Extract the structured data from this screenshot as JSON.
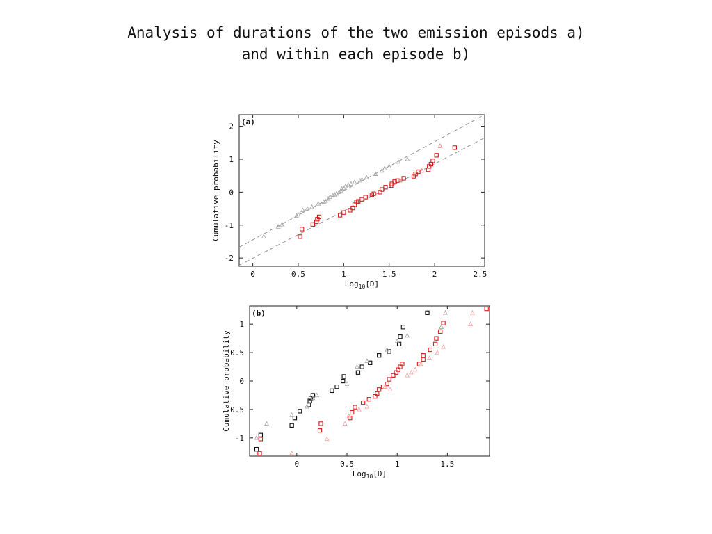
{
  "slide": {
    "title_line1": "Analysis of durations of the two emission episods a)",
    "title_line2": "and within each episode b)"
  },
  "chart_data": [
    {
      "type": "scatter",
      "panel_label": "(a)",
      "xlabel_main": "Log",
      "xlabel_sub": "10",
      "xlabel_rest": "[D]",
      "ylabel": "Cumulative probability",
      "xlim": [
        -0.15,
        2.55
      ],
      "ylim": [
        -2.25,
        2.35
      ],
      "xticks": [
        0,
        0.5,
        1,
        1.5,
        2,
        2.5
      ],
      "xtick_labels": [
        "0",
        "0.5",
        "1",
        "1.5",
        "2",
        "2.5"
      ],
      "yticks": [
        -2,
        -1,
        0,
        1,
        2
      ],
      "ytick_labels": [
        "-2",
        "-1",
        "0",
        "1",
        "2"
      ],
      "grid": false,
      "reference_lines": [
        {
          "color": "#999999",
          "x": [
            -0.15,
            2.55
          ],
          "y": [
            -1.67,
            2.35
          ]
        },
        {
          "color": "#999999",
          "x": [
            -0.15,
            2.55
          ],
          "y": [
            -2.22,
            1.65
          ]
        }
      ],
      "series": [
        {
          "marker": "triangle",
          "color": "#aaaaaa",
          "x": [
            0.12,
            0.28,
            0.32,
            0.48,
            0.5,
            0.55,
            0.6,
            0.65,
            0.72,
            0.78,
            0.8,
            0.83,
            0.85,
            0.88,
            0.9,
            0.92,
            0.95,
            0.97,
            0.98,
            1.0,
            1.02,
            1.05,
            1.08,
            1.12,
            1.18,
            1.2,
            1.25,
            1.35,
            1.42,
            1.45,
            1.5,
            1.6,
            1.7
          ],
          "y": [
            -1.35,
            -1.05,
            -0.98,
            -0.72,
            -0.68,
            -0.55,
            -0.5,
            -0.45,
            -0.35,
            -0.3,
            -0.28,
            -0.2,
            -0.15,
            -0.1,
            -0.08,
            -0.05,
            0.0,
            0.05,
            0.1,
            0.12,
            0.18,
            0.22,
            0.25,
            0.3,
            0.35,
            0.38,
            0.45,
            0.55,
            0.65,
            0.72,
            0.78,
            0.92,
            1.0
          ]
        },
        {
          "marker": "square",
          "color": "#d42020",
          "x": [
            0.52,
            0.54,
            0.66,
            0.7,
            0.71,
            0.73,
            0.96,
            1.0,
            1.07,
            1.1,
            1.12,
            1.14,
            1.16,
            1.2,
            1.24,
            1.31,
            1.33,
            1.4,
            1.42,
            1.46,
            1.52,
            1.53,
            1.56,
            1.59,
            1.66,
            1.77,
            1.79,
            1.82,
            1.93,
            1.94,
            1.96,
            1.98,
            2.02,
            2.22
          ],
          "y": [
            -1.35,
            -1.12,
            -0.98,
            -0.9,
            -0.82,
            -0.75,
            -0.7,
            -0.62,
            -0.55,
            -0.48,
            -0.38,
            -0.3,
            -0.28,
            -0.22,
            -0.15,
            -0.08,
            -0.05,
            0.0,
            0.08,
            0.15,
            0.2,
            0.25,
            0.32,
            0.35,
            0.42,
            0.48,
            0.55,
            0.62,
            0.68,
            0.78,
            0.85,
            0.95,
            1.12,
            1.35
          ]
        },
        {
          "marker": "triangle",
          "color": "#f08080",
          "x": [
            1.62,
            1.86,
            2.06
          ],
          "y": [
            0.35,
            0.65,
            1.4
          ]
        }
      ]
    },
    {
      "type": "scatter",
      "panel_label": "(b)",
      "xlabel_main": "Log",
      "xlabel_sub": "10",
      "xlabel_rest": "[D]",
      "ylabel": "Cumulative probability",
      "xlim": [
        -0.47,
        1.92
      ],
      "ylim": [
        -1.32,
        1.32
      ],
      "xticks": [
        0,
        0.5,
        1,
        1.5
      ],
      "xtick_labels": [
        "0",
        "0.5",
        "1",
        "1.5"
      ],
      "yticks": [
        -1,
        -0.5,
        0,
        0.5,
        1
      ],
      "ytick_labels": [
        "-1",
        "-0.5",
        "0",
        "0.5",
        "1"
      ],
      "grid": false,
      "series": [
        {
          "marker": "square",
          "color": "#111111",
          "x": [
            -0.4,
            -0.36,
            -0.05,
            -0.02,
            0.03,
            0.12,
            0.13,
            0.14,
            0.16,
            0.35,
            0.4,
            0.46,
            0.47,
            0.61,
            0.65,
            0.73,
            0.82,
            0.92,
            1.02,
            1.03,
            1.06,
            1.3
          ],
          "y": [
            -1.2,
            -0.95,
            -0.78,
            -0.65,
            -0.53,
            -0.42,
            -0.35,
            -0.3,
            -0.25,
            -0.17,
            -0.1,
            0.0,
            0.08,
            0.15,
            0.25,
            0.32,
            0.45,
            0.52,
            0.65,
            0.78,
            0.95,
            1.2
          ]
        },
        {
          "marker": "triangle",
          "color": "#aaaaaa",
          "x": [
            -0.4,
            -0.3,
            -0.05,
            0.1,
            0.16,
            0.2,
            0.5,
            0.6,
            0.7,
            0.9,
            1.0,
            1.1,
            1.44,
            1.48
          ],
          "y": [
            -1.0,
            -0.75,
            -0.6,
            -0.45,
            -0.3,
            -0.25,
            -0.05,
            0.25,
            0.35,
            0.55,
            0.7,
            0.8,
            0.95,
            1.2
          ]
        },
        {
          "marker": "square",
          "color": "#d42020",
          "x": [
            -0.37,
            -0.36,
            0.23,
            0.24,
            0.53,
            0.55,
            0.58,
            0.66,
            0.72,
            0.78,
            0.8,
            0.82,
            0.86,
            0.9,
            0.92,
            0.96,
            0.99,
            1.01,
            1.03,
            1.05,
            1.22,
            1.26,
            1.26,
            1.33,
            1.38,
            1.39,
            1.43,
            1.46,
            1.89
          ],
          "y": [
            -1.27,
            -1.02,
            -0.87,
            -0.75,
            -0.65,
            -0.55,
            -0.46,
            -0.38,
            -0.32,
            -0.27,
            -0.22,
            -0.15,
            -0.1,
            -0.05,
            0.03,
            0.1,
            0.15,
            0.2,
            0.25,
            0.3,
            0.3,
            0.38,
            0.45,
            0.55,
            0.65,
            0.75,
            0.87,
            1.02,
            1.27
          ]
        },
        {
          "marker": "triangle",
          "color": "#f6a8a8",
          "x": [
            -0.05,
            0.3,
            0.48,
            0.52,
            0.62,
            0.7,
            0.88,
            0.93,
            1.1,
            1.14,
            1.18,
            1.24,
            1.32,
            1.4,
            1.46,
            1.73,
            1.75
          ],
          "y": [
            -1.27,
            -1.02,
            -0.75,
            -0.62,
            -0.5,
            -0.45,
            -0.1,
            -0.15,
            0.1,
            0.15,
            0.2,
            0.3,
            0.4,
            0.5,
            0.6,
            1.0,
            1.2
          ]
        }
      ]
    }
  ]
}
